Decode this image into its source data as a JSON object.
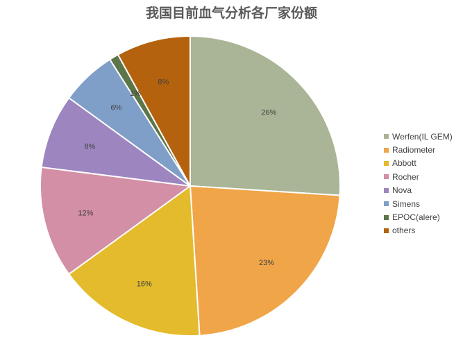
{
  "chart_data": {
    "type": "pie",
    "title": "我国目前血气分析各厂家份额",
    "categories": [
      "Werfen(IL GEM)",
      "Radiometer",
      "Abbott",
      "Rocher",
      "Nova",
      "Simens",
      "EPOC(alere)",
      "others"
    ],
    "values": [
      26,
      23,
      16,
      12,
      8,
      6,
      1,
      8
    ],
    "labels": [
      "26%",
      "23%",
      "16%",
      "12%",
      "8%",
      "6%",
      "1%",
      "8%"
    ],
    "colors": [
      "#a9b596",
      "#f0a548",
      "#e3bb2c",
      "#d38fa5",
      "#9d85c0",
      "#809fc8",
      "#5c7549",
      "#b5620f"
    ],
    "legend": "right"
  }
}
